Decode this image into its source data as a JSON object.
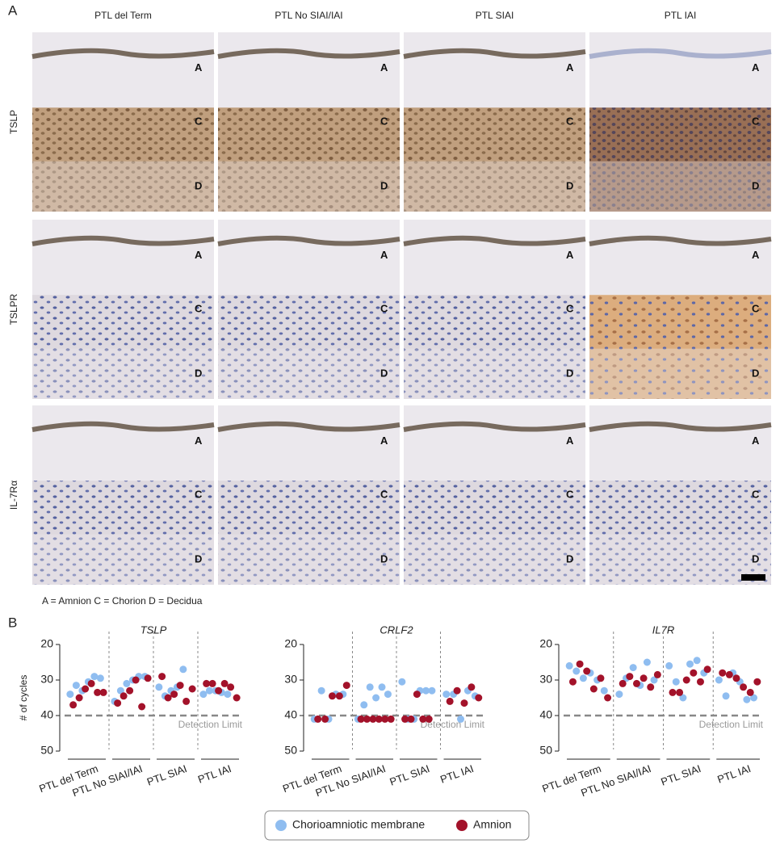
{
  "panel_a": {
    "label": "A",
    "columns": [
      "PTL del Term",
      "PTL No SIAI/IAI",
      "PTL SIAI",
      "PTL IAI"
    ],
    "rows": [
      {
        "label": "TSLP",
        "cells": [
          [
            "A",
            "C",
            "D"
          ],
          [
            "A",
            "C",
            "D"
          ],
          [
            "A",
            "C",
            "D"
          ],
          [
            "A",
            "C",
            "D"
          ]
        ]
      },
      {
        "label": "TSLPR",
        "cells": [
          [
            "A",
            "C",
            "D"
          ],
          [
            "A",
            "C",
            "D"
          ],
          [
            "A",
            "C",
            "D"
          ],
          [
            "A",
            "C",
            "D"
          ]
        ]
      },
      {
        "label": "IL-7Rα",
        "cells": [
          [
            "A",
            "C",
            "D"
          ],
          [
            "A",
            "C",
            "D"
          ],
          [
            "A",
            "C",
            "D"
          ],
          [
            "A",
            "C",
            "D"
          ]
        ]
      }
    ],
    "caption": "A = Amnion C = Chorion  D = Decidua"
  },
  "panel_b": {
    "label": "B"
  },
  "chart_data": [
    {
      "type": "scatter",
      "title": "TSLP",
      "y_label": "# of cycles",
      "ylim": [
        20,
        50
      ],
      "yticks": [
        20,
        30,
        40,
        50
      ],
      "y_inverted": true,
      "detection_limit": 40,
      "annotation": "Detection Limit",
      "categories": [
        "PTL del Term",
        "PTL No SIAI/IAI",
        "PTL SIAI",
        "PTL IAI"
      ],
      "series": [
        {
          "name": "Chorioamniotic membrane",
          "color": "#8fbdf0",
          "values": [
            [
              34,
              31.5,
              33,
              30.5,
              29,
              29.5
            ],
            [
              36,
              33,
              31,
              30,
              29,
              29
            ],
            [
              32,
              34.5,
              33,
              32,
              27
            ],
            [
              34,
              33,
              33,
              33.5,
              34
            ]
          ]
        },
        {
          "name": "Amnion",
          "color": "#a3122a",
          "values": [
            [
              37,
              35,
              32.5,
              31,
              33.5,
              33.5
            ],
            [
              36.5,
              34.5,
              33,
              30,
              37.5,
              29.5
            ],
            [
              29,
              35,
              34,
              31.5,
              36,
              32.5
            ],
            [
              31,
              31,
              33,
              31,
              32,
              35
            ]
          ]
        }
      ]
    },
    {
      "type": "scatter",
      "title": "CRLF2",
      "ylim": [
        20,
        50
      ],
      "yticks": [
        20,
        30,
        40,
        50
      ],
      "y_inverted": true,
      "detection_limit": 40,
      "annotation": "Detection Limit",
      "categories": [
        "PTL del Term",
        "PTL No SIAI/IAI",
        "PTL SIAI",
        "PTL IAI"
      ],
      "series": [
        {
          "name": "Chorioamniotic membrane",
          "color": "#8fbdf0",
          "values": [
            [
              41,
              33,
              41,
              34,
              34
            ],
            [
              41,
              37,
              32,
              35,
              32,
              34
            ],
            [
              30.5,
              41,
              41,
              33,
              33,
              33
            ],
            [
              34,
              34,
              41,
              33,
              34.5
            ]
          ]
        },
        {
          "name": "Amnion",
          "color": "#a3122a",
          "values": [
            [
              41,
              41,
              34.5,
              34.5,
              31.5
            ],
            [
              41,
              41,
              41,
              41,
              41,
              41
            ],
            [
              41,
              41,
              34,
              41,
              41
            ],
            [
              36,
              33,
              36.5,
              32,
              35
            ]
          ]
        }
      ]
    },
    {
      "type": "scatter",
      "title": "IL7R",
      "ylim": [
        20,
        50
      ],
      "yticks": [
        20,
        30,
        40,
        50
      ],
      "y_inverted": true,
      "detection_limit": 40,
      "annotation": "Detection Limit",
      "categories": [
        "PTL del Term",
        "PTL No SIAI/IAI",
        "PTL SIAI",
        "PTL IAI"
      ],
      "series": [
        {
          "name": "Chorioamniotic membrane",
          "color": "#8fbdf0",
          "values": [
            [
              26,
              27.5,
              29.5,
              28,
              30,
              33
            ],
            [
              34,
              29.5,
              26.5,
              31.5,
              25,
              30
            ],
            [
              26,
              30.5,
              35,
              25.5,
              24.5,
              28
            ],
            [
              30,
              34.5,
              28,
              30.5,
              35.5,
              35
            ]
          ]
        },
        {
          "name": "Amnion",
          "color": "#a3122a",
          "values": [
            [
              30.5,
              25.5,
              27.5,
              32.5,
              29.5,
              35
            ],
            [
              31,
              29,
              31,
              29.5,
              32,
              28.5
            ],
            [
              33.5,
              33.5,
              30,
              28,
              30.5,
              27
            ],
            [
              28,
              28.5,
              29.5,
              32,
              33.5,
              30.5
            ]
          ]
        }
      ]
    }
  ]
}
